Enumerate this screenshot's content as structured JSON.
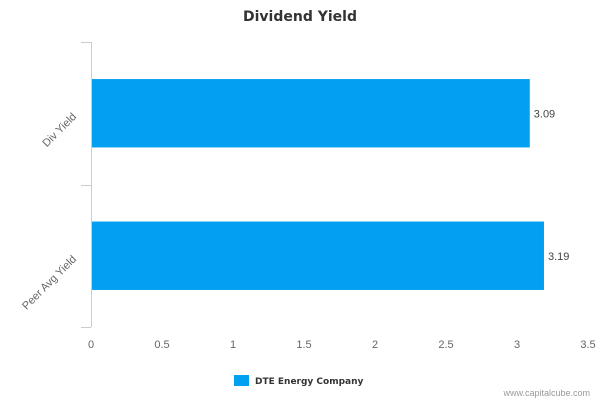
{
  "chart_data": {
    "type": "bar",
    "orientation": "horizontal",
    "title": "Dividend Yield",
    "categories": [
      "Div Yield",
      "Peer Avg Yield"
    ],
    "series": [
      {
        "name": "DTE Energy Company",
        "values": [
          3.09,
          3.19
        ],
        "color": "#02a0f0"
      }
    ],
    "data_labels": [
      "3.09",
      "3.19"
    ],
    "xlim": [
      0,
      3.5
    ],
    "x_ticks": [
      0,
      0.5,
      1,
      1.5,
      2,
      2.5,
      3,
      3.5
    ],
    "x_tick_labels": [
      "0",
      "0.5",
      "1",
      "1.5",
      "2",
      "2.5",
      "3",
      "3.5"
    ],
    "grid": false,
    "legend_position": "bottom-center"
  },
  "credit": "www.capitalcube.com",
  "colors": {
    "bar": "#02a0f0",
    "axis": "#cccccc",
    "title": "#333333"
  }
}
